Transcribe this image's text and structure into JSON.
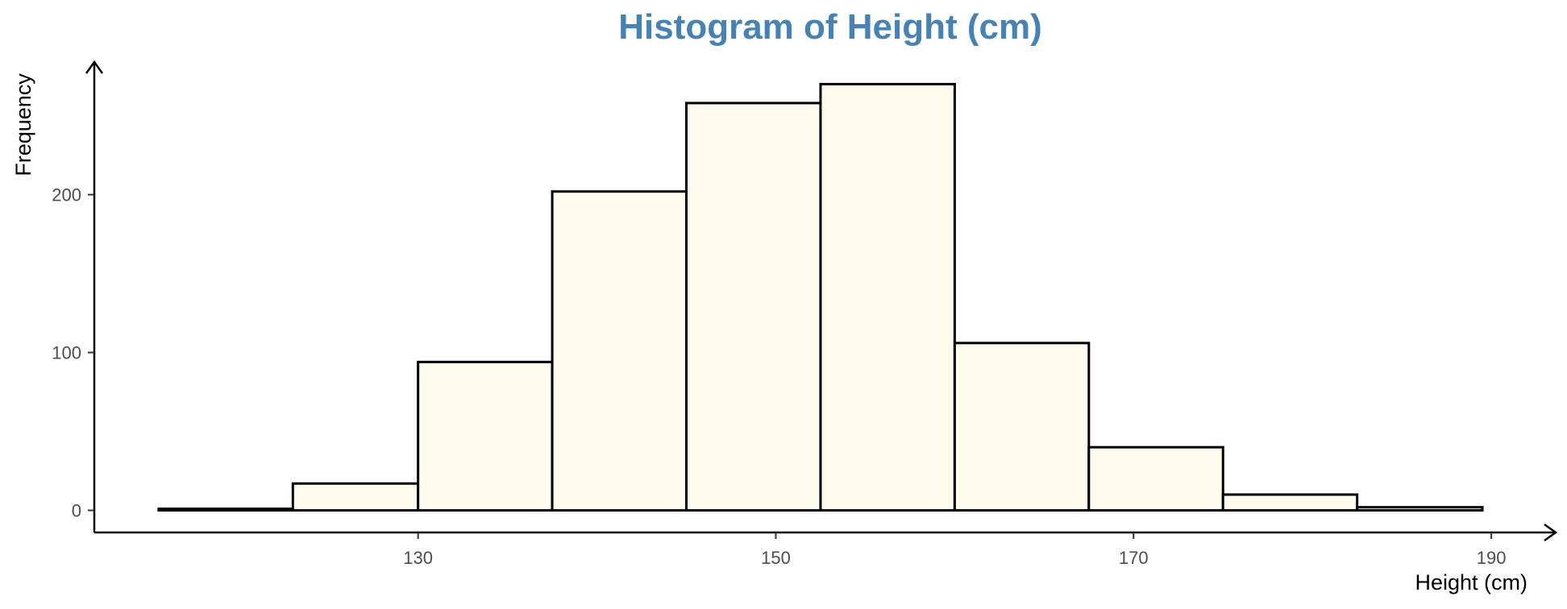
{
  "chart_data": {
    "type": "bar",
    "title": "Histogram of Height (cm)",
    "xlabel": "Height (cm)",
    "ylabel": "Frequency",
    "bins": [
      {
        "x0": 115.5,
        "x1": 123.0,
        "count": 1
      },
      {
        "x0": 123.0,
        "x1": 130.0,
        "count": 17
      },
      {
        "x0": 130.0,
        "x1": 137.5,
        "count": 94
      },
      {
        "x0": 137.5,
        "x1": 145.0,
        "count": 202
      },
      {
        "x0": 145.0,
        "x1": 152.5,
        "count": 258
      },
      {
        "x0": 152.5,
        "x1": 160.0,
        "count": 270
      },
      {
        "x0": 160.0,
        "x1": 167.5,
        "count": 106
      },
      {
        "x0": 167.5,
        "x1": 175.0,
        "count": 40
      },
      {
        "x0": 175.0,
        "x1": 182.5,
        "count": 10
      },
      {
        "x0": 182.5,
        "x1": 189.5,
        "count": 2
      }
    ],
    "xticks": [
      130,
      150,
      170,
      190
    ],
    "yticks": [
      0,
      100,
      200
    ],
    "xlim": [
      111.9,
      193.6
    ],
    "ylim": [
      -14,
      284
    ],
    "grid": false,
    "colors": {
      "bar_fill": "#fffbee",
      "bar_stroke": "#000000",
      "title": "#4682b4"
    }
  }
}
